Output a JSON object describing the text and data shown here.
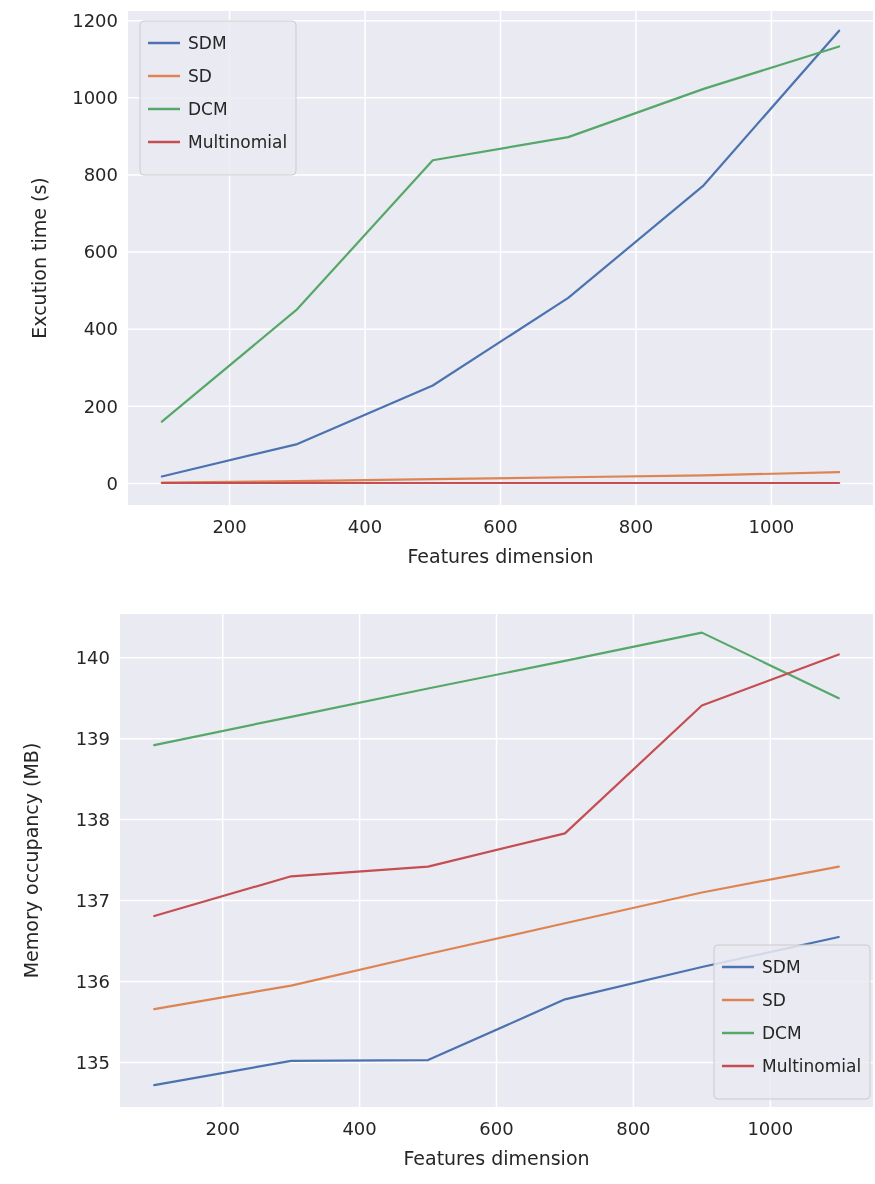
{
  "chart_data": [
    {
      "type": "line",
      "xlabel": "Features dimension",
      "ylabel": "Excution time (s)",
      "x": [
        100,
        300,
        500,
        700,
        900,
        1100
      ],
      "series": [
        {
          "name": "SDM",
          "color": "#4c72b0",
          "values": [
            18,
            102,
            254,
            481,
            773,
            1174
          ]
        },
        {
          "name": "SD",
          "color": "#dd8452",
          "values": [
            2,
            6,
            11,
            16,
            21,
            29
          ]
        },
        {
          "name": "DCM",
          "color": "#55a868",
          "values": [
            160,
            452,
            838,
            898,
            1023,
            1133
          ]
        },
        {
          "name": "Multinomial",
          "color": "#c44e52",
          "values": [
            1,
            1,
            1,
            1,
            1,
            1
          ]
        }
      ],
      "xlim": [
        50,
        1150
      ],
      "xticks": [
        200,
        400,
        600,
        800,
        1000
      ],
      "ylim": [
        -56,
        1225
      ],
      "yticks": [
        0,
        200,
        400,
        600,
        800,
        1000,
        1200
      ],
      "grid": true,
      "legend": "top left"
    },
    {
      "type": "line",
      "xlabel": "Features dimension",
      "ylabel": "Memory occupancy (MB)",
      "x": [
        100,
        300,
        500,
        700,
        900,
        1100
      ],
      "series": [
        {
          "name": "SDM",
          "color": "#4c72b0",
          "values": [
            134.72,
            135.02,
            135.03,
            135.78,
            136.18,
            136.55
          ]
        },
        {
          "name": "SD",
          "color": "#dd8452",
          "values": [
            135.66,
            135.95,
            136.34,
            136.72,
            137.1,
            137.42
          ]
        },
        {
          "name": "DCM",
          "color": "#55a868",
          "values": [
            138.92,
            139.27,
            139.62,
            139.96,
            140.31,
            139.5
          ]
        },
        {
          "name": "Multinomial",
          "color": "#c44e52",
          "values": [
            136.81,
            137.3,
            137.42,
            137.83,
            139.41,
            140.04
          ]
        }
      ],
      "xlim": [
        50,
        1150
      ],
      "xticks": [
        200,
        400,
        600,
        800,
        1000
      ],
      "ylim": [
        134.45,
        140.54
      ],
      "yticks": [
        135,
        136,
        137,
        138,
        139,
        140
      ],
      "grid": true,
      "legend": "bottom right"
    }
  ]
}
